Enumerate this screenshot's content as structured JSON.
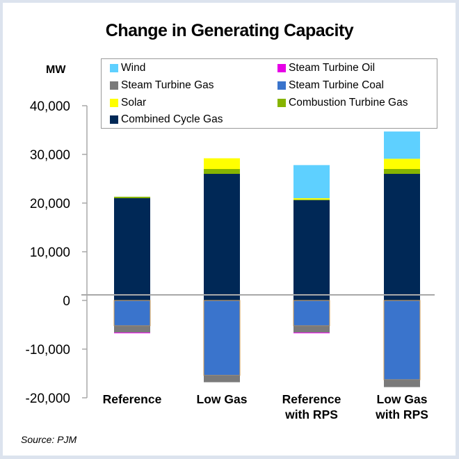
{
  "chart_data": {
    "type": "bar",
    "stacked": true,
    "title": "Change in Generating Capacity",
    "ylabel": "MW",
    "xlabel": "",
    "ylim": [
      -20000,
      40000
    ],
    "yticks": [
      40000,
      30000,
      20000,
      10000,
      0,
      -10000,
      -20000
    ],
    "ytick_labels": [
      "40,000",
      "30,000",
      "20,000",
      "10,000",
      "0",
      "-10,000",
      "-20,000"
    ],
    "categories": [
      [
        "Reference"
      ],
      [
        "Low Gas"
      ],
      [
        "Reference",
        "with RPS"
      ],
      [
        "Low Gas",
        "with RPS"
      ]
    ],
    "category_names": [
      "Reference",
      "Low Gas",
      "Reference with RPS",
      "Low Gas with RPS"
    ],
    "legend_position": "top",
    "grid": false,
    "series": [
      {
        "name": "Combined Cycle Gas",
        "color": "#002856",
        "values": [
          21000,
          26000,
          20600,
          26000
        ]
      },
      {
        "name": "Combustion Turbine Gas",
        "color": "#86b400",
        "values": [
          300,
          1000,
          150,
          1000
        ]
      },
      {
        "name": "Solar",
        "color": "#ffff00",
        "values": [
          0,
          2200,
          250,
          2100
        ]
      },
      {
        "name": "Wind",
        "color": "#5ed0ff",
        "values": [
          0,
          0,
          6800,
          5600
        ]
      },
      {
        "name": "Steam Turbine Coal",
        "color": "#3a74cc",
        "values": [
          -5200,
          -15400,
          -5200,
          -16300
        ]
      },
      {
        "name": "Steam Turbine Gas",
        "color": "#7a7a7a",
        "values": [
          -1400,
          -1400,
          -1400,
          -1500
        ]
      },
      {
        "name": "Steam Turbine Oil",
        "color": "#e600e6",
        "values": [
          -150,
          0,
          -150,
          0
        ]
      }
    ],
    "legend": [
      {
        "name": "Wind",
        "color": "#5ed0ff"
      },
      {
        "name": "Steam Turbine Oil",
        "color": "#e600e6"
      },
      {
        "name": "Steam Turbine Gas",
        "color": "#7a7a7a"
      },
      {
        "name": "Steam Turbine Coal",
        "color": "#3a74cc"
      },
      {
        "name": "Solar",
        "color": "#ffff00"
      },
      {
        "name": "Combustion Turbine Gas",
        "color": "#86b400"
      },
      {
        "name": "Combined Cycle Gas",
        "color": "#002856"
      }
    ],
    "source": "Source: PJM"
  }
}
